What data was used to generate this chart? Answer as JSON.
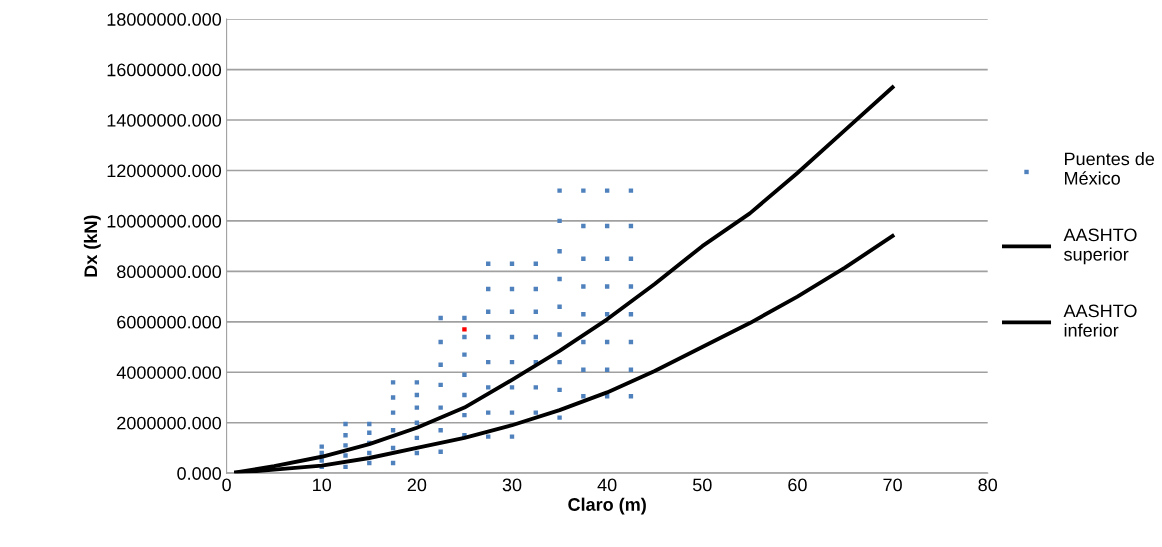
{
  "chart_data": {
    "type": "scatter",
    "xlabel": "Claro (m)",
    "ylabel": "Dx (kN)",
    "xlim": [
      0,
      80
    ],
    "xticks": [
      0,
      10,
      20,
      30,
      40,
      50,
      60,
      70,
      80
    ],
    "ylim": [
      0,
      18000000
    ],
    "yticks": [
      {
        "value": 0,
        "label": "0.000"
      },
      {
        "value": 2000000,
        "label": "2000000.000"
      },
      {
        "value": 4000000,
        "label": "4000000.000"
      },
      {
        "value": 6000000,
        "label": "6000000.000"
      },
      {
        "value": 8000000,
        "label": "8000000.000"
      },
      {
        "value": 10000000,
        "label": "10000000.000"
      },
      {
        "value": 12000000,
        "label": "12000000.000"
      },
      {
        "value": 14000000,
        "label": "14000000.000"
      },
      {
        "value": 16000000,
        "label": "16000000.000"
      },
      {
        "value": 18000000,
        "label": "18000000.000"
      }
    ],
    "grid": "y",
    "legend": "right",
    "marker": "square",
    "series": [
      {
        "name": "Puentes de México",
        "color": "#4f81bd",
        "x": [
          10,
          10,
          10,
          10,
          12.5,
          12.5,
          12.5,
          12.5,
          12.5,
          15,
          15,
          15,
          15,
          15,
          17.5,
          17.5,
          17.5,
          17.5,
          17.5,
          17.5,
          20,
          20,
          20,
          20,
          20,
          20,
          22.5,
          22.5,
          22.5,
          22.5,
          22.5,
          22.5,
          22.5,
          25,
          25,
          25,
          25,
          25,
          25,
          25,
          27.5,
          27.5,
          27.5,
          27.5,
          27.5,
          27.5,
          27.5,
          27.5,
          30,
          30,
          30,
          30,
          30,
          30,
          30,
          30,
          32.5,
          32.5,
          32.5,
          32.5,
          32.5,
          32.5,
          32.5,
          35,
          35,
          35,
          35,
          35,
          35,
          35,
          35,
          35,
          37.5,
          37.5,
          37.5,
          37.5,
          37.5,
          37.5,
          37.5,
          37.5,
          40,
          40,
          40,
          40,
          40,
          40,
          40,
          40,
          42.5,
          42.5,
          42.5,
          42.5,
          42.5,
          42.5,
          42.5,
          42.5
        ],
        "values": [
          250000,
          500000,
          800000,
          1050000,
          250000,
          700000,
          1100000,
          1500000,
          1950000,
          400000,
          800000,
          1200000,
          1600000,
          1950000,
          400000,
          1000000,
          1700000,
          2400000,
          3000000,
          3600000,
          800000,
          1400000,
          2000000,
          2600000,
          3100000,
          3600000,
          850000,
          1700000,
          2600000,
          3500000,
          4300000,
          5200000,
          6150000,
          1500000,
          2300000,
          3100000,
          3900000,
          4700000,
          5400000,
          6150000,
          1450000,
          2400000,
          3400000,
          4400000,
          5400000,
          6400000,
          7300000,
          8300000,
          1450000,
          2400000,
          3400000,
          4400000,
          5400000,
          6400000,
          7300000,
          8300000,
          2400000,
          3400000,
          4400000,
          5400000,
          6400000,
          7300000,
          8300000,
          2200000,
          3300000,
          4400000,
          5500000,
          6600000,
          7700000,
          8800000,
          10000000,
          11200000,
          3050000,
          4100000,
          5200000,
          6300000,
          7400000,
          8500000,
          9800000,
          11200000,
          3050000,
          4100000,
          5200000,
          6300000,
          7400000,
          8500000,
          9800000,
          11200000,
          3050000,
          4100000,
          5200000,
          6300000,
          7400000,
          8500000,
          9800000,
          11200000
        ]
      },
      {
        "color": "#ff0000",
        "x": [
          25
        ],
        "values": [
          5700000
        ]
      },
      {
        "name": "AASHTO superior",
        "color": "#000000",
        "type": "line",
        "marker": "none",
        "x": [
          1,
          5,
          10,
          15,
          20,
          25,
          30,
          35,
          40,
          45,
          50,
          55,
          60,
          65,
          70
        ],
        "values": [
          30000,
          280000,
          650000,
          1150000,
          1800000,
          2600000,
          3700000,
          4850000,
          6100000,
          7500000,
          9000000,
          10300000,
          11900000,
          13600000,
          15300000
        ]
      },
      {
        "name": "AASHTO inferior",
        "color": "#000000",
        "type": "line",
        "marker": "none",
        "x": [
          1,
          5,
          10,
          15,
          20,
          25,
          30,
          35,
          40,
          45,
          50,
          55,
          60,
          65,
          70
        ],
        "values": [
          20000,
          140000,
          300000,
          600000,
          1000000,
          1400000,
          1900000,
          2500000,
          3200000,
          4050000,
          5000000,
          5950000,
          7000000,
          8150000,
          9400000
        ]
      }
    ]
  }
}
